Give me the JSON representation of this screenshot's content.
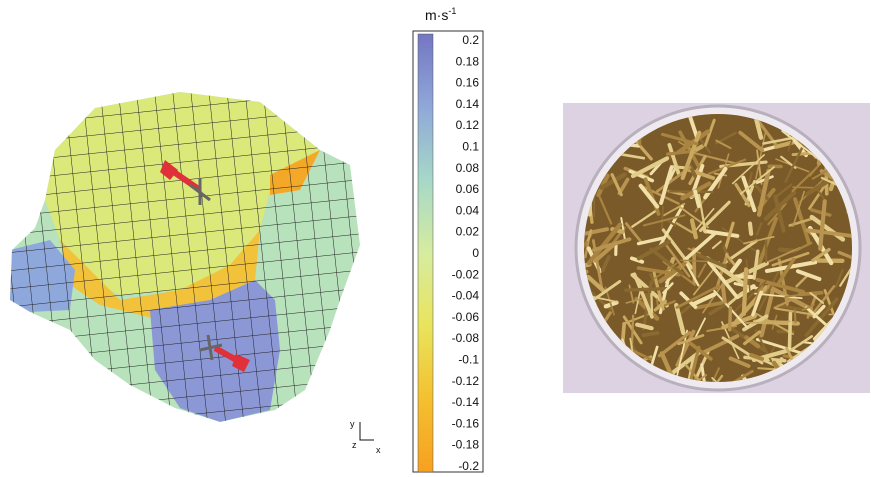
{
  "colorbar": {
    "unit": "m·s",
    "unit_exponent": "-1",
    "range": [
      -0.2,
      0.2
    ],
    "ticks": [
      0.2,
      0.18,
      0.16,
      0.14,
      0.12,
      0.1,
      0.08,
      0.06,
      0.04,
      0.02,
      0,
      -0.02,
      -0.04,
      -0.06,
      -0.08,
      -0.1,
      -0.12,
      -0.14,
      -0.16,
      -0.18,
      -0.2
    ],
    "colormap": [
      "#7476c2",
      "#8fa8d8",
      "#a6d8c8",
      "#d6eca0",
      "#e9e45c",
      "#f4c030",
      "#f7a020"
    ]
  },
  "axes_triad": {
    "y": "y",
    "z": "z",
    "x": "x"
  }
}
